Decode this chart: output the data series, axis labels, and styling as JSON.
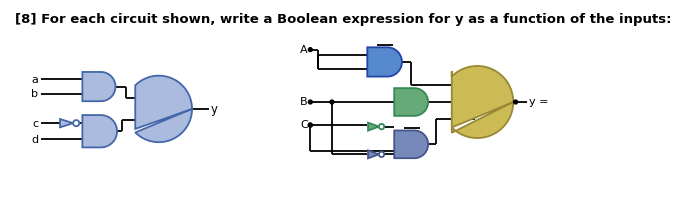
{
  "title": "[8] For each circuit shown, write a Boolean expression for y as a function of the inputs:",
  "title_color": "#000000",
  "title_fontsize": 9.5,
  "title_fontweight": "bold",
  "bg_color": "#ffffff",
  "gate_blue_light_fill": "#aabbdd",
  "gate_blue_light_edge": "#4466aa",
  "gate_blue_fill": "#5588cc",
  "gate_blue_edge": "#2244aa",
  "gate_green_fill": "#66aa77",
  "gate_green_edge": "#338855",
  "gate_yellow_fill": "#ccbb55",
  "gate_yellow_edge": "#998833",
  "gate_slate_fill": "#7788bb",
  "gate_slate_edge": "#445588",
  "wire_color": "#000000",
  "label_color": "#000000",
  "lw": 1.3
}
